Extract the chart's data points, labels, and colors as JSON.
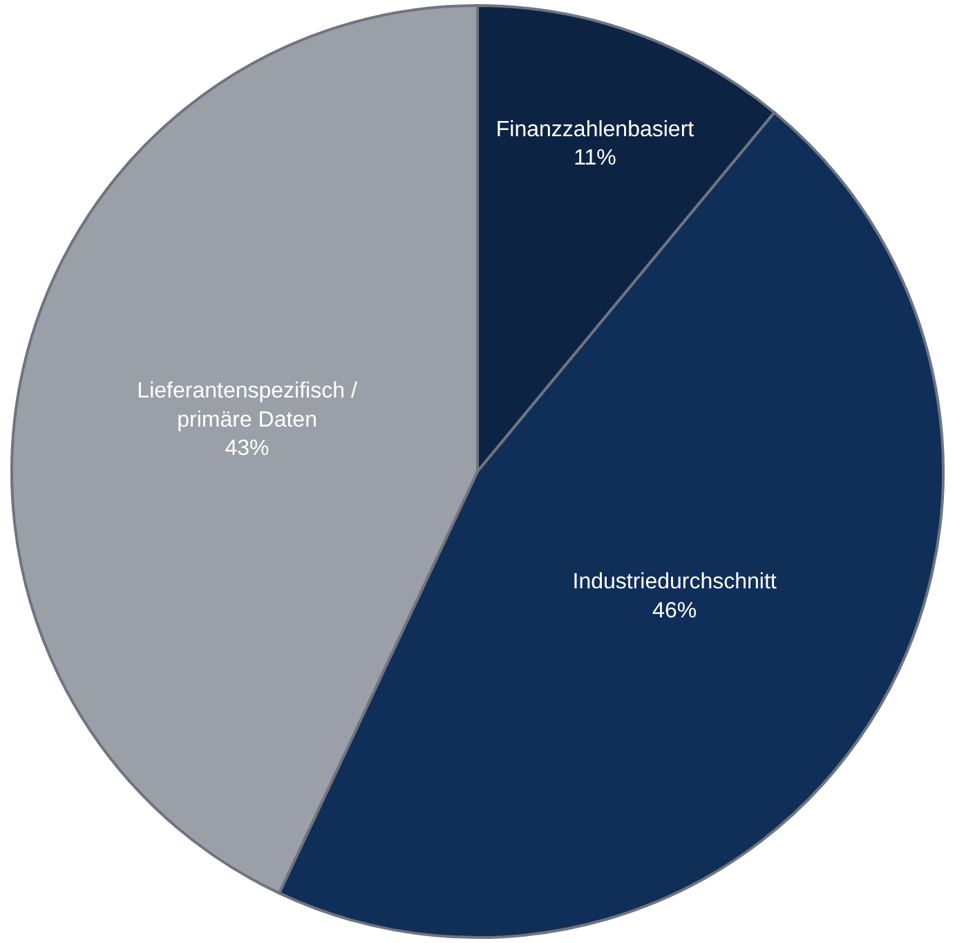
{
  "chart_data": {
    "type": "pie",
    "categories": [
      "Finanzzahlenbasiert",
      "Industriedurchschnitt",
      "Lieferantenspezifisch / primäre Daten"
    ],
    "values": [
      11,
      46,
      43
    ],
    "value_labels": [
      "11%",
      "46%",
      "43%"
    ],
    "colors": [
      "#0c2344",
      "#0f2e58",
      "#9b9fa8"
    ],
    "legend": false
  }
}
